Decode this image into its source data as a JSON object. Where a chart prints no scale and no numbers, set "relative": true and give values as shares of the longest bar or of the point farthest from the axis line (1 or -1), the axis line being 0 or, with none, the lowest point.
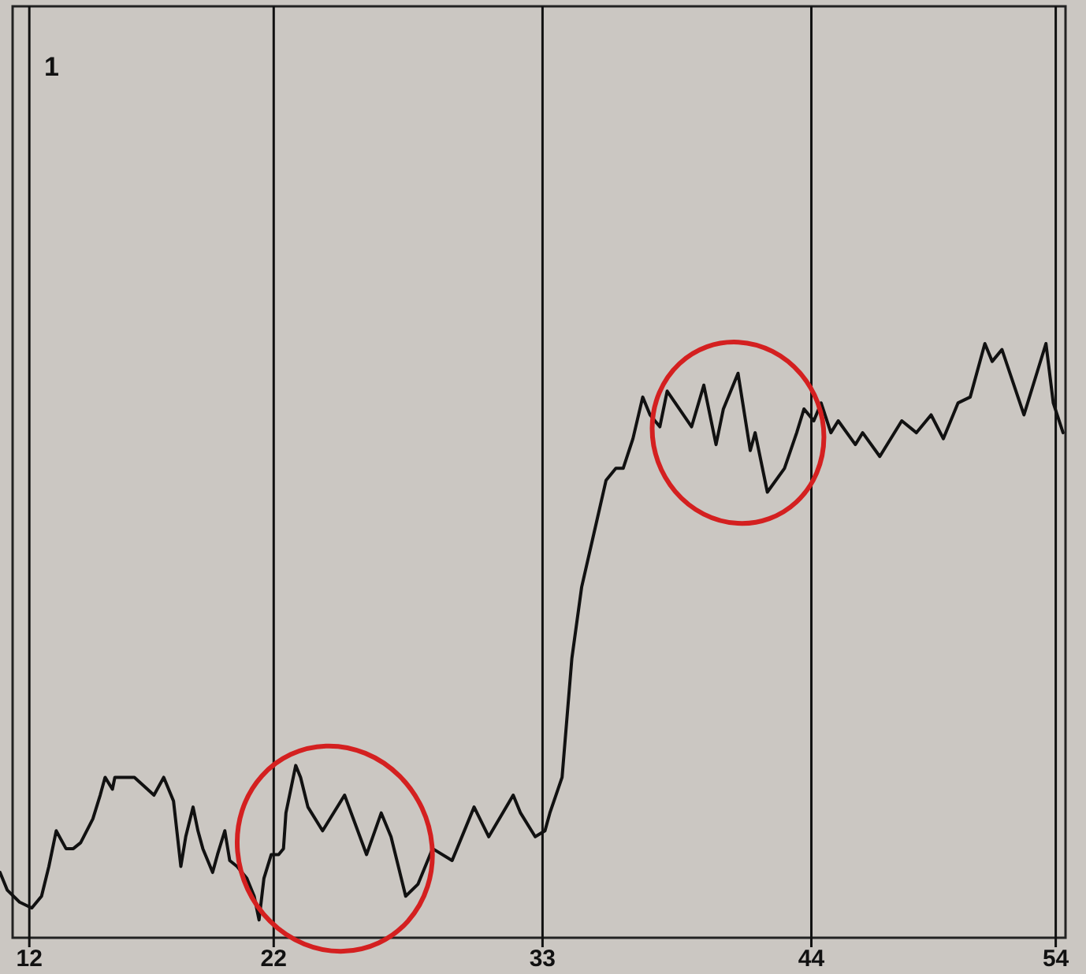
{
  "chart_data": {
    "type": "line",
    "relative": true,
    "x": [
      10.8,
      11.1,
      11.6,
      12.1,
      12.5,
      12.8,
      13.1,
      13.5,
      13.8,
      14.1,
      14.6,
      14.9,
      15.1,
      15.4,
      15.5,
      16.0,
      16.3,
      17.1,
      17.5,
      17.9,
      18.2,
      18.4,
      18.7,
      18.9,
      19.1,
      19.5,
      19.7,
      20.0,
      20.2,
      20.5,
      20.9,
      21.2,
      21.4,
      21.6,
      21.9,
      22.2,
      22.4,
      22.5,
      22.9,
      23.1,
      23.4,
      24.0,
      24.9,
      25.8,
      26.4,
      26.8,
      27.4,
      27.9,
      28.5,
      29.3,
      30.2,
      30.8,
      31.8,
      32.1,
      32.7,
      33.1,
      33.3,
      33.8,
      34.2,
      34.6,
      35.1,
      35.6,
      36.0,
      36.3,
      36.7,
      37.1,
      37.4,
      37.8,
      38.1,
      39.1,
      39.6,
      40.1,
      40.4,
      41.0,
      41.5,
      41.7,
      42.2,
      42.9,
      43.4,
      43.7,
      44.1,
      44.4,
      44.8,
      45.1,
      45.8,
      46.1,
      46.8,
      47.7,
      48.3,
      48.9,
      49.4,
      50.0,
      50.5,
      51.1,
      51.4,
      51.8,
      52.7,
      53.6,
      53.9,
      54.3
    ],
    "series": [
      {
        "color": "#111111",
        "values": [
          0.11,
          0.08,
          0.06,
          0.05,
          0.07,
          0.12,
          0.18,
          0.15,
          0.15,
          0.16,
          0.2,
          0.24,
          0.27,
          0.25,
          0.27,
          0.27,
          0.27,
          0.24,
          0.27,
          0.23,
          0.12,
          0.17,
          0.22,
          0.18,
          0.15,
          0.11,
          0.14,
          0.18,
          0.13,
          0.12,
          0.1,
          0.07,
          0.03,
          0.1,
          0.14,
          0.14,
          0.15,
          0.21,
          0.29,
          0.27,
          0.22,
          0.18,
          0.24,
          0.14,
          0.21,
          0.17,
          0.07,
          0.09,
          0.15,
          0.13,
          0.22,
          0.17,
          0.24,
          0.21,
          0.17,
          0.18,
          0.21,
          0.27,
          0.47,
          0.59,
          0.68,
          0.77,
          0.79,
          0.79,
          0.84,
          0.91,
          0.88,
          0.86,
          0.92,
          0.86,
          0.93,
          0.83,
          0.89,
          0.95,
          0.82,
          0.85,
          0.75,
          0.79,
          0.85,
          0.89,
          0.87,
          0.9,
          0.85,
          0.87,
          0.83,
          0.85,
          0.81,
          0.87,
          0.85,
          0.88,
          0.84,
          0.9,
          0.91,
          1,
          0.97,
          0.99,
          0.88,
          1,
          0.9,
          0.85
        ]
      }
    ],
    "xlim": [
      10.8,
      54.4
    ],
    "xticks": [
      12,
      22,
      33,
      44,
      54
    ],
    "grid": "x",
    "annotations": [
      "1"
    ]
  }
}
